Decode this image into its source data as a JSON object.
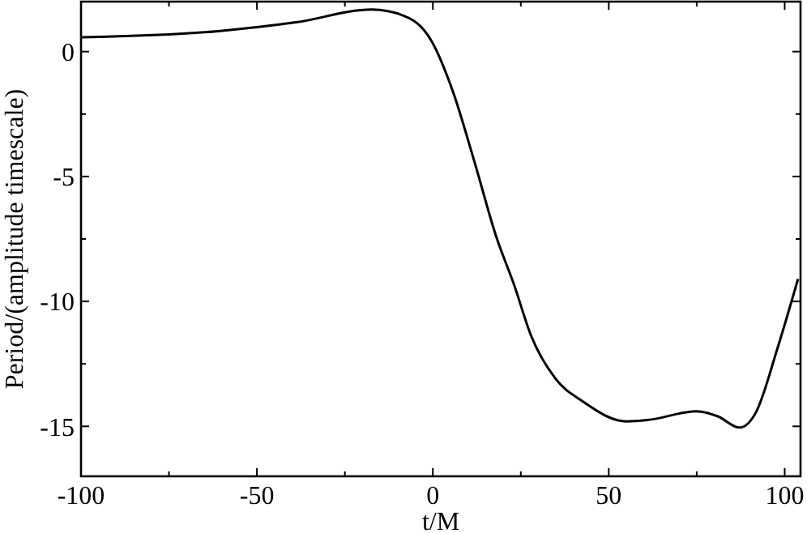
{
  "chart_data": {
    "type": "line",
    "xlabel": "t/M",
    "ylabel": "Period/(amplitude timescale)",
    "xlim": [
      -100,
      104.5
    ],
    "ylim": [
      -17,
      2
    ],
    "xticks": [
      -100,
      {
        "value": -75,
        "label": null
      },
      -50,
      {
        "value": -25,
        "label": null
      },
      0,
      {
        "value": 25,
        "label": null
      },
      50,
      {
        "value": 75,
        "label": null
      },
      100
    ],
    "yticks": [
      -15,
      {
        "value": -12.5,
        "label": null
      },
      -10,
      {
        "value": -7.5,
        "label": null
      },
      -5,
      {
        "value": -2.5,
        "label": null
      },
      0
    ],
    "grid": false,
    "line_style": "solid",
    "marker": "none",
    "series": [
      {
        "color": "#000000",
        "x": [
          -100,
          -61,
          -39,
          -17.3,
          -8.2,
          -0.5,
          5.7,
          11.8,
          18,
          23,
          28,
          34.9,
          42.6,
          54.9,
          61,
          74.9,
          81,
          87.2,
          91.8,
          97.9,
          103.8
        ],
        "values": [
          0.57,
          0.82,
          1.17,
          1.68,
          1.43,
          0.45,
          -1.6,
          -4.4,
          -7.4,
          -9.3,
          -11.4,
          -13.1,
          -14.0,
          -14.8,
          -14.75,
          -14.4,
          -14.6,
          -15.05,
          -14.45,
          -11.9,
          -9.1
        ]
      }
    ]
  }
}
